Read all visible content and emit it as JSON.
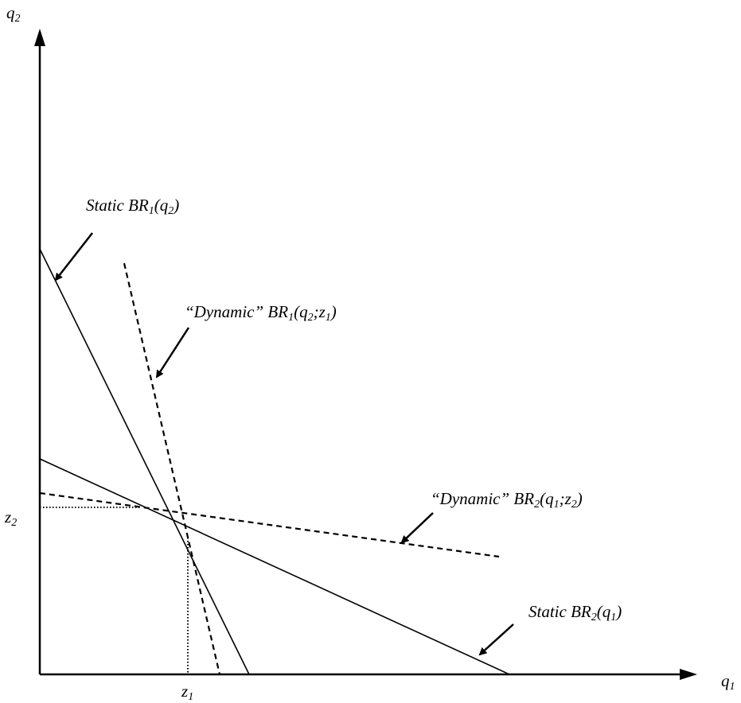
{
  "colors": {
    "line": "#000000",
    "background": "#ffffff"
  },
  "axes": {
    "y_label": {
      "base": "q",
      "sub": "2"
    },
    "x_label": {
      "base": "q",
      "sub": "1"
    },
    "y_mark": {
      "base": "z",
      "sub": "2"
    },
    "x_mark": {
      "base": "z",
      "sub": "1"
    }
  },
  "labels": {
    "static_br1": {
      "pre": "Static BR",
      "sub": "1",
      "post": "(q",
      "sub2": "2",
      "post2": ")"
    },
    "dynamic_br1": {
      "pre": "“Dynamic” BR",
      "sub": "1",
      "post": "(q",
      "sub2": "2",
      "post2": ";z",
      "sub3": "1",
      "post3": ")"
    },
    "dynamic_br2": {
      "pre": "“Dynamic” BR",
      "sub": "2",
      "post": "(q",
      "sub2": "1",
      "post2": ";z",
      "sub3": "2",
      "post3": ")"
    },
    "static_br2": {
      "pre": "Static BR",
      "sub": "2",
      "post": "(q",
      "sub2": "1",
      "post2": ")"
    }
  },
  "lines": [
    {
      "name": "static-br1",
      "style": "solid"
    },
    {
      "name": "static-br2",
      "style": "solid"
    },
    {
      "name": "dynamic-br1",
      "style": "dashed"
    },
    {
      "name": "dynamic-br2",
      "style": "dashed"
    }
  ]
}
